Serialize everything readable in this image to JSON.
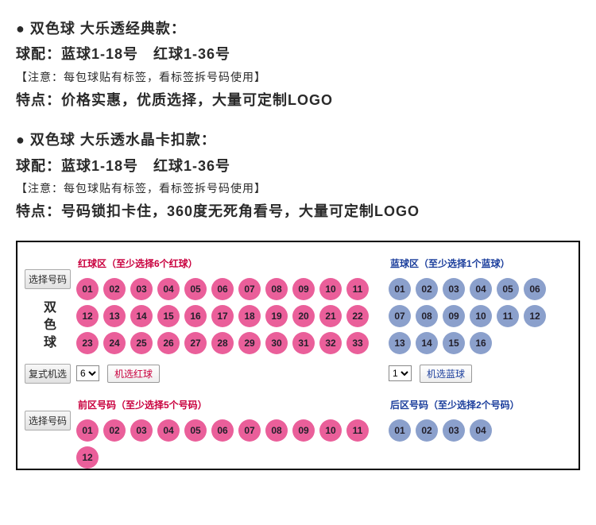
{
  "desc": {
    "block1": {
      "title": "● 双色球 大乐透经典款：",
      "line_balls": "球配：蓝球1-18号　红球1-36号",
      "note": "【注意：每包球贴有标签，看标签拆号码使用】",
      "feature": "特点：价格实惠，优质选择，大量可定制LOGO"
    },
    "block2": {
      "title": "● 双色球 大乐透水晶卡扣款：",
      "line_balls": "球配：蓝球1-18号　红球1-36号",
      "note": "【注意：每包球贴有标签，看标签拆号码使用】",
      "feature": "特点：号码锁扣卡住，360度无死角看号，大量可定制LOGO"
    }
  },
  "panel": {
    "labels": {
      "select_number": "选择号码",
      "game_name_vert": "双色球",
      "complex_random": "复式机选"
    },
    "red_zone": {
      "title": "红球区（至少选择6个红球）",
      "color": "#ea5f9a",
      "balls": [
        "01",
        "02",
        "03",
        "04",
        "05",
        "06",
        "07",
        "08",
        "09",
        "10",
        "11",
        "12",
        "13",
        "14",
        "15",
        "16",
        "17",
        "18",
        "19",
        "20",
        "21",
        "22",
        "23",
        "24",
        "25",
        "26",
        "27",
        "28",
        "29",
        "30",
        "31",
        "32",
        "33"
      ]
    },
    "blue_zone": {
      "title": "蓝球区（至少选择1个蓝球）",
      "color": "#8ba0cc",
      "balls": [
        "01",
        "02",
        "03",
        "04",
        "05",
        "06",
        "07",
        "08",
        "09",
        "10",
        "11",
        "12",
        "13",
        "14",
        "15",
        "16"
      ]
    },
    "controls": {
      "red_select_value": "6",
      "red_btn": "机选红球",
      "blue_select_value": "1",
      "blue_btn": "机选蓝球"
    },
    "front_zone": {
      "title": "前区号码（至少选择5个号码）",
      "balls": [
        "01",
        "02",
        "03",
        "04",
        "05",
        "06",
        "07",
        "08",
        "09",
        "10",
        "11",
        "12"
      ]
    },
    "back_zone": {
      "title": "后区号码（至少选择2个号码）",
      "balls_visible": [
        "01",
        "02",
        "03",
        "04"
      ]
    }
  }
}
